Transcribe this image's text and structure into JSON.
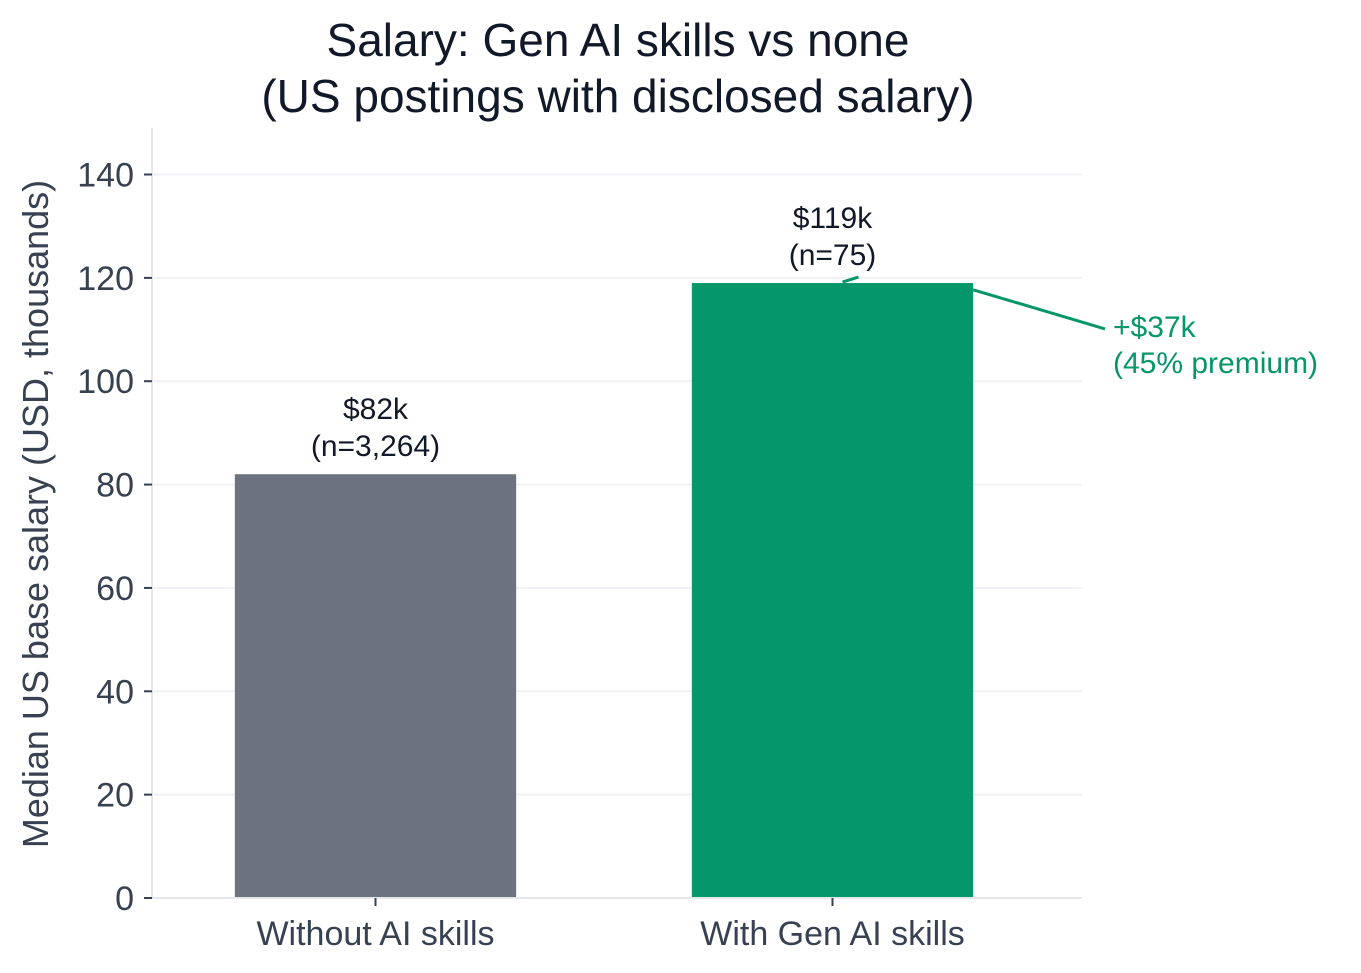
{
  "chart_data": {
    "type": "bar",
    "title": [
      "Salary: Gen AI skills vs none",
      "(US postings with disclosed salary)"
    ],
    "xlabel": "",
    "ylabel": "Median US base salary (USD, thousands)",
    "categories": [
      "Without AI skills",
      "With Gen AI skills"
    ],
    "values": [
      82,
      119
    ],
    "colors": [
      "#6b7280",
      "#059669"
    ],
    "data_labels": [
      [
        "$82k",
        "(n=3,264)"
      ],
      [
        "$119k",
        "(n=75)"
      ]
    ],
    "ylim": [
      0,
      149
    ],
    "yticks": [
      0,
      20,
      40,
      60,
      80,
      100,
      120,
      140
    ],
    "grid": "horizontal",
    "annotation": {
      "lines": [
        "+$37k",
        "(45% premium)"
      ],
      "color": "#059669"
    }
  }
}
